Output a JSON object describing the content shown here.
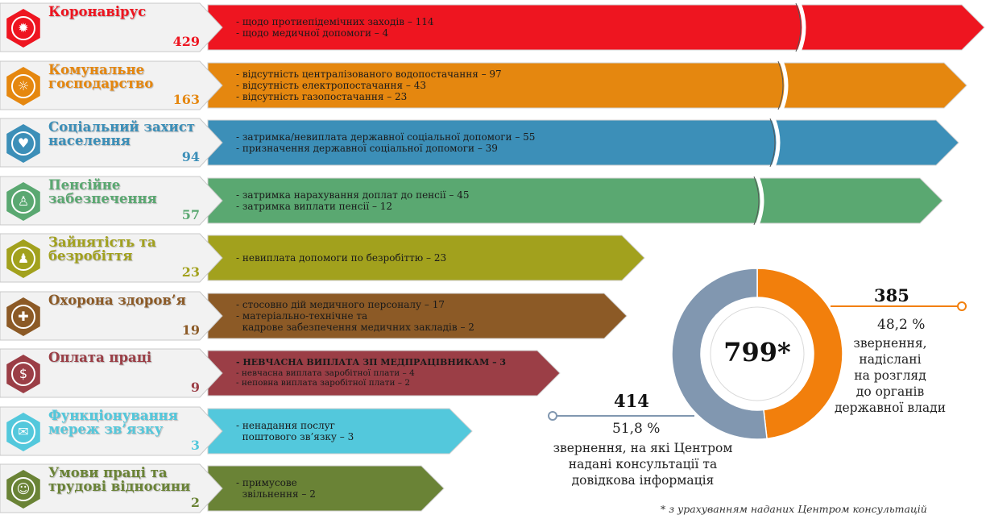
{
  "chart_data": {
    "type": "bar",
    "title": "",
    "categories": [
      {
        "title": "Коронавірус",
        "count": 429,
        "color": "#ee1520",
        "icon": "virus-icon",
        "items": [
          "- щодо протиепідемічних заходів – 114",
          "- щодо медичної допомоги – 4"
        ],
        "broken": true
      },
      {
        "title": "Комунальне господарство",
        "count": 163,
        "color": "#e5870f",
        "icon": "lightbulb-icon",
        "items": [
          "- відсутність централізованого водопостачання – 97",
          "- відсутність електропостачання – 43",
          "- відсутність газопостачання – 23"
        ],
        "broken": true
      },
      {
        "title": "Соціальний захист населення",
        "count": 94,
        "color": "#3c8fb8",
        "icon": "family-care-icon",
        "items": [
          "- затримка/невиплата державної соціальної допомоги – 55",
          "- призначення державної соціальної допомоги – 39"
        ],
        "broken": true
      },
      {
        "title": "Пенсійне забезпечення",
        "count": 57,
        "color": "#5aa871",
        "icon": "elderly-person-icon",
        "items": [
          "- затримка нарахування доплат до пенсії – 45",
          "- затримка виплати пенсії – 12"
        ],
        "broken": true
      },
      {
        "title": "Зайнятість та безробіття",
        "count": 23,
        "color": "#a2a11d",
        "icon": "worker-icon",
        "items": [
          "- невиплата допомоги по безробіттю – 23"
        ],
        "broken": false
      },
      {
        "title": "Охорона здоров’я",
        "count": 19,
        "color": "#8c5a26",
        "icon": "medical-cross-icon",
        "items": [
          "- стосовно дій медичного персоналу – 17",
          "- матеріально-технічне та",
          "  кадрове забезпечення медичних закладів – 2"
        ],
        "broken": false
      },
      {
        "title": "Оплата праці",
        "count": 9,
        "color": "#9b3e46",
        "icon": "money-icon",
        "items": [
          "- НЕВЧАСНА ВИПЛАТА ЗП МЕДПРАЦІВНИКАМ – 3",
          "- невчасна виплата заробітної плати – 4",
          "- неповна виплата заробітної плати – 2"
        ],
        "broken": false,
        "small": true
      },
      {
        "title": "Функціонування мереж зв’язку",
        "count": 3,
        "color": "#53c8dc",
        "icon": "postal-icon",
        "items": [
          "- ненадання послуг",
          "  поштового зв’язку – 3"
        ],
        "broken": false
      },
      {
        "title": "Умови праці та трудові відносини",
        "count": 2,
        "color": "#6a8336",
        "icon": "handshake-icon",
        "items": [
          "- примусове",
          "  звільнення – 2"
        ],
        "broken": false
      }
    ],
    "donut": {
      "type": "pie",
      "total": "799*",
      "slices": [
        {
          "value": 385,
          "percent": "48,2 %",
          "label": [
            "звернення,",
            "надіслані",
            "на розгляд",
            "до органів",
            "державної влади"
          ],
          "color": "#f27f0c"
        },
        {
          "value": 414,
          "percent": "51,8 %",
          "label": [
            "звернення, на які Центром",
            "надані консультації та",
            "довідкова інформація"
          ],
          "color": "#8197b0"
        }
      ]
    },
    "footnote": "* з урахуванням наданих Центром консультацій"
  }
}
